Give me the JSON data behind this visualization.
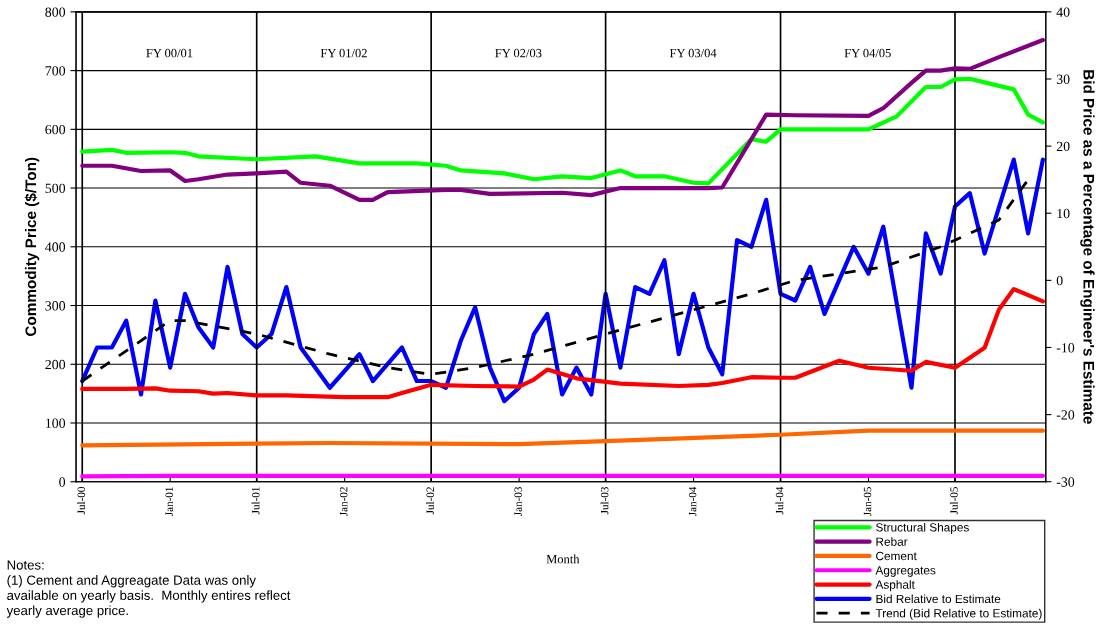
{
  "chart_data": {
    "type": "line",
    "ylabel": "Commodity Price ($/Ton)",
    "y2label": "Bid Price as a Percentage of Engineer's Estimate",
    "xlabel": "Month",
    "xlim": [
      "2000-06-18",
      "2006-01-07"
    ],
    "xticks": [
      {
        "value": "2000-07",
        "label": "Jul-00"
      },
      {
        "value": "2001-01",
        "label": "Jan-01"
      },
      {
        "value": "2001-07",
        "label": "Jul-01"
      },
      {
        "value": "2002-01",
        "label": "Jan-02"
      },
      {
        "value": "2002-07",
        "label": "Jul-02"
      },
      {
        "value": "2003-01",
        "label": "Jan-03"
      },
      {
        "value": "2003-07",
        "label": "Jul-03"
      },
      {
        "value": "2004-01",
        "label": "Jan-04"
      },
      {
        "value": "2004-07",
        "label": "Jul-04"
      },
      {
        "value": "2005-01",
        "label": "Jan-05"
      },
      {
        "value": "2005-07",
        "label": "Jul-05"
      }
    ],
    "ylim": [
      0,
      800
    ],
    "yticks": [
      0,
      100,
      200,
      300,
      400,
      500,
      600,
      700,
      800
    ],
    "y2lim": [
      -30,
      40
    ],
    "y2ticks": [
      -30,
      -20,
      -10,
      0,
      10,
      20,
      30,
      40
    ],
    "grid": "y",
    "legend": "bottom right",
    "marker": "none",
    "line_style": "solid",
    "ref_lines": [
      {
        "axis": "x",
        "value": "2000-07"
      },
      {
        "axis": "x",
        "value": "2001-07"
      },
      {
        "axis": "x",
        "value": "2002-07"
      },
      {
        "axis": "x",
        "value": "2003-07"
      },
      {
        "axis": "x",
        "value": "2004-07"
      },
      {
        "axis": "x",
        "value": "2005-07"
      }
    ],
    "annotations": [
      "FY 00/01",
      "FY 01/02",
      "FY 02/03",
      "FY 03/04",
      "FY 04/05",
      "Notes:\n(1) Cement and Aggreagate Data was only\navailable on yearly basis.  Monthly entires reflect\nyearly average price."
    ],
    "series": [
      {
        "name": "Structural Shapes",
        "color": "#00ff00",
        "x": [
          "2000-07",
          "2000-09",
          "2000-10",
          "2001-01",
          "2001-02",
          "2001-03",
          "2001-07",
          "2001-11",
          "2002-02",
          "2002-06",
          "2002-08",
          "2002-09",
          "2002-12",
          "2003-02",
          "2003-04",
          "2003-06",
          "2003-08",
          "2003-09",
          "2003-11",
          "2004-01",
          "2004-02",
          "2004-05",
          "2004-06",
          "2004-07",
          "2005-01",
          "2005-03",
          "2005-05",
          "2005-06",
          "2005-07",
          "2005-08",
          "2005-10",
          "2005-11",
          "2005-12",
          "2006-01"
        ],
        "values": [
          562,
          565,
          560,
          561,
          560,
          554,
          549,
          554,
          542,
          542,
          538,
          530,
          525,
          515,
          520,
          517,
          530,
          520,
          520,
          509,
          508,
          583,
          579,
          600,
          600,
          622,
          672,
          672,
          685,
          686,
          674,
          668,
          625,
          612
        ]
      },
      {
        "name": "Rebar",
        "color": "#800080",
        "x": [
          "2000-07",
          "2000-09",
          "2000-11",
          "2001-01",
          "2001-02",
          "2001-03",
          "2001-05",
          "2001-07",
          "2001-09",
          "2001-10",
          "2001-12",
          "2002-02",
          "2002-03",
          "2002-04",
          "2002-08",
          "2002-09",
          "2002-11",
          "2003-04",
          "2003-06",
          "2003-08",
          "2003-11",
          "2004-02",
          "2004-03",
          "2004-06",
          "2004-08",
          "2005-01",
          "2005-02",
          "2005-04",
          "2005-05",
          "2005-06",
          "2005-07",
          "2005-08",
          "2005-10",
          "2006-01"
        ],
        "values": [
          538,
          538,
          529,
          530,
          512,
          515,
          523,
          525,
          528,
          509,
          504,
          480,
          480,
          493,
          497,
          497,
          490,
          492,
          488,
          500,
          500,
          500,
          501,
          625,
          624,
          623,
          636,
          679,
          700,
          700,
          704,
          703,
          723,
          752
        ]
      },
      {
        "name": "Cement",
        "color": "#ff6600",
        "x": [
          "2000-07",
          "2001-12",
          "2003-01",
          "2003-07",
          "2004-07",
          "2005-01",
          "2006-01"
        ],
        "values": [
          62,
          66,
          64,
          69,
          80,
          87,
          87
        ]
      },
      {
        "name": "Aggregates",
        "color": "#ff00ff",
        "x": [
          "2000-07",
          "2001-01",
          "2006-01"
        ],
        "values": [
          9,
          10,
          10
        ]
      },
      {
        "name": "Asphalt",
        "color": "#ff0000",
        "x": [
          "2000-07",
          "2000-10",
          "2000-12",
          "2001-01",
          "2001-03",
          "2001-04",
          "2001-05",
          "2001-07",
          "2001-09",
          "2002-01",
          "2002-04",
          "2002-05",
          "2002-07",
          "2002-10",
          "2003-01",
          "2003-02",
          "2003-03",
          "2003-05",
          "2003-08",
          "2003-12",
          "2004-02",
          "2004-03",
          "2004-05",
          "2004-07",
          "2004-08",
          "2004-11",
          "2005-01",
          "2005-04",
          "2005-05",
          "2005-07",
          "2005-09",
          "2005-10",
          "2005-11",
          "2006-01"
        ],
        "values": [
          158,
          158,
          159,
          155,
          154,
          150,
          151,
          147,
          147,
          144,
          144,
          151,
          165,
          163,
          162,
          174,
          191,
          176,
          167,
          163,
          165,
          168,
          178,
          177,
          177,
          206,
          194,
          189,
          204,
          194,
          228,
          293,
          328,
          307
        ]
      },
      {
        "name": "Bid Relative to Estimate",
        "color": "#0000ff",
        "axis": "y2",
        "x": [
          "2000-07",
          "2000-08",
          "2000-09",
          "2000-10",
          "2000-11",
          "2000-12",
          "2001-01",
          "2001-02",
          "2001-03",
          "2001-04",
          "2001-05",
          "2001-06",
          "2001-07",
          "2001-08",
          "2001-09",
          "2001-10",
          "2001-12",
          "2002-02",
          "2002-03",
          "2002-05",
          "2002-06",
          "2002-07",
          "2002-08",
          "2002-09",
          "2002-10",
          "2002-11",
          "2002-12",
          "2003-01",
          "2003-02",
          "2003-03",
          "2003-04",
          "2003-05",
          "2003-06",
          "2003-07",
          "2003-08",
          "2003-09",
          "2003-10",
          "2003-11",
          "2003-12",
          "2004-01",
          "2004-02",
          "2004-03",
          "2004-04",
          "2004-05",
          "2004-06",
          "2004-07",
          "2004-08",
          "2004-09",
          "2004-10",
          "2004-12",
          "2005-01",
          "2005-02",
          "2005-04",
          "2005-05",
          "2005-06",
          "2005-07",
          "2005-08",
          "2005-09",
          "2005-11",
          "2005-12",
          "2006-01"
        ],
        "values": [
          -15,
          -10,
          -10,
          -6,
          -17,
          -3,
          -13,
          -2,
          -7,
          -10,
          2,
          -8,
          -10,
          -8,
          -1,
          -10,
          -16,
          -11,
          -15,
          -10,
          -15,
          -15,
          -16,
          -9,
          -4,
          -13,
          -18,
          -16,
          -8,
          -5,
          -17,
          -13,
          -17,
          -2,
          -13,
          -1,
          -2,
          3,
          -11,
          -2,
          -10,
          -14,
          6,
          5,
          12,
          -2,
          -3,
          2,
          -5,
          5,
          1,
          8,
          -16,
          7,
          1,
          11,
          13,
          4,
          18,
          7,
          18
        ]
      },
      {
        "name": "Trend (Bid Relative to Estimate)",
        "color": "#000000",
        "type": "line",
        "line_style": "dashed",
        "axis": "y2",
        "x": [
          "2000-07",
          "2001-01",
          "2001-02",
          "2001-07",
          "2001-12",
          "2002-04",
          "2002-07",
          "2002-10",
          "2003-02",
          "2003-07",
          "2003-12",
          "2004-05",
          "2004-08",
          "2005-02",
          "2005-06",
          "2005-10",
          "2005-12"
        ],
        "values": [
          -15,
          -6,
          -6,
          -8,
          -11,
          -13,
          -14,
          -13,
          -11,
          -8,
          -5,
          -2,
          0,
          2,
          5,
          9,
          15
        ]
      }
    ]
  }
}
